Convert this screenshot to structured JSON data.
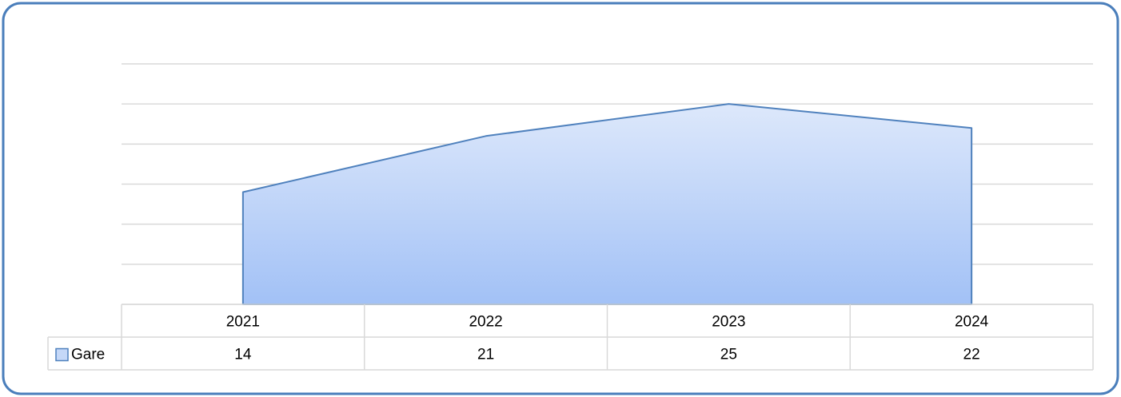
{
  "chart_data": {
    "type": "area",
    "categories": [
      "2021",
      "2022",
      "2023",
      "2024"
    ],
    "series": [
      {
        "name": "Gare",
        "color": "#4f81bd",
        "values": [
          14,
          21,
          25,
          22
        ]
      }
    ],
    "ylim": [
      0,
      30
    ],
    "yticks": [
      0,
      5,
      10,
      15,
      20,
      25,
      30
    ],
    "grid": true,
    "data_table": true
  }
}
